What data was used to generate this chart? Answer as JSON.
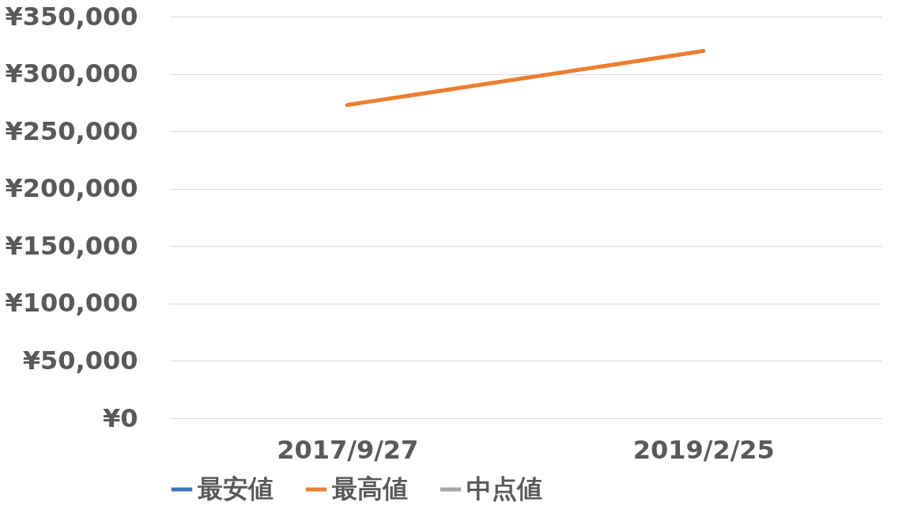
{
  "chart_data": {
    "type": "line",
    "categories": [
      "2017/9/27",
      "2019/2/25"
    ],
    "series": [
      {
        "name": "最安値",
        "color": "#4472c4",
        "values": [
          null,
          null
        ]
      },
      {
        "name": "最高値",
        "color": "#ed7d31",
        "values": [
          273000,
          320000
        ]
      },
      {
        "name": "中点値",
        "color": "#a5a5a5",
        "values": [
          null,
          null
        ]
      }
    ],
    "ylim": [
      0,
      350000
    ],
    "yticks": [
      {
        "value": 0,
        "label": "¥0"
      },
      {
        "value": 50000,
        "label": "¥50,000"
      },
      {
        "value": 100000,
        "label": "¥100,000"
      },
      {
        "value": 150000,
        "label": "¥150,000"
      },
      {
        "value": 200000,
        "label": "¥200,000"
      },
      {
        "value": 250000,
        "label": "¥250,000"
      },
      {
        "value": 300000,
        "label": "¥300,000"
      },
      {
        "value": 350000,
        "label": "¥350,000"
      }
    ],
    "grid": "y",
    "legend": "bottom",
    "marker": "none",
    "line_style": "solid"
  }
}
